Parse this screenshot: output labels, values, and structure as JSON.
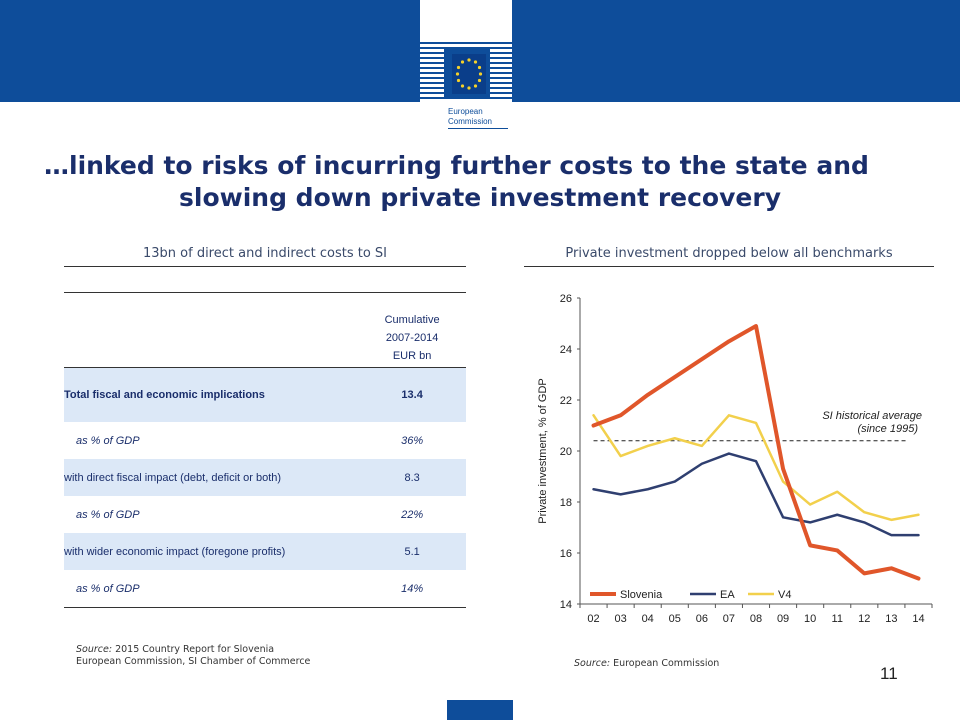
{
  "slide": {
    "title_line1": "…linked to risks of incurring further costs to the state and",
    "title_line2": "slowing down private investment recovery",
    "page_number": "11",
    "logo_text_line1": "European",
    "logo_text_line2": "Commission"
  },
  "left_panel": {
    "heading": "13bn of direct and indirect costs to SI",
    "column_header": [
      "Cumulative",
      "2007-2014",
      "EUR bn"
    ],
    "rows": [
      {
        "label": "Total fiscal and economic implications",
        "value": "13.4"
      },
      {
        "label": "as % of GDP",
        "value": "36%"
      },
      {
        "label": "with direct fiscal impact (debt, deficit or both)",
        "value": "8.3"
      },
      {
        "label": "as % of GDP",
        "value": "22%"
      },
      {
        "label": "with wider economic impact  (foregone profits)",
        "value": "5.1"
      },
      {
        "label": "as % of GDP",
        "value": "14%"
      }
    ],
    "source_label": "Source:",
    "source_line1": "2015 Country Report for Slovenia",
    "source_line2": "European Commission, SI Chamber of Commerce"
  },
  "right_panel": {
    "heading": "Private investment dropped below all benchmarks",
    "source_label": "Source:",
    "source_text": "European Commission"
  },
  "chart_data": {
    "type": "line",
    "x": [
      "02",
      "03",
      "04",
      "05",
      "06",
      "07",
      "08",
      "09",
      "10",
      "11",
      "12",
      "13",
      "14"
    ],
    "series": [
      {
        "name": "Slovenia",
        "color": "#e0562a",
        "values": [
          21.0,
          21.4,
          22.2,
          22.9,
          23.6,
          24.3,
          24.9,
          19.3,
          16.3,
          16.1,
          15.2,
          15.4,
          15.0
        ]
      },
      {
        "name": "EA",
        "color": "#2f3f70",
        "values": [
          18.5,
          18.3,
          18.5,
          18.8,
          19.5,
          19.9,
          19.6,
          17.4,
          17.2,
          17.5,
          17.2,
          16.7,
          16.7
        ]
      },
      {
        "name": "V4",
        "color": "#f2d04c",
        "values": [
          21.4,
          19.8,
          20.2,
          20.5,
          20.2,
          21.4,
          21.1,
          18.8,
          17.9,
          18.4,
          17.6,
          17.3,
          17.5
        ]
      }
    ],
    "reference_line": {
      "value": 20.4,
      "label_line1": "SI historical average",
      "label_line2": "(since 1995)"
    },
    "ylabel": "Private investment, % of GDP",
    "ylim": [
      14,
      26
    ],
    "yticks": [
      14,
      16,
      18,
      20,
      22,
      24,
      26
    ],
    "legend_position": "bottom"
  }
}
